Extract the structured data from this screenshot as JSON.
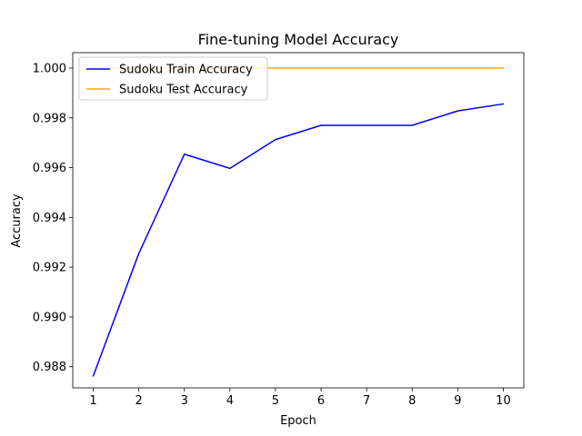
{
  "chart_data": {
    "type": "line",
    "title": "Fine-tuning Model Accuracy",
    "xlabel": "Epoch",
    "ylabel": "Accuracy",
    "x": [
      1,
      2,
      3,
      4,
      5,
      6,
      7,
      8,
      9,
      10
    ],
    "xticks": [
      "1",
      "2",
      "3",
      "4",
      "5",
      "6",
      "7",
      "8",
      "9",
      "10"
    ],
    "yticks": [
      "0.988",
      "0.990",
      "0.992",
      "0.994",
      "0.996",
      "0.998",
      "1.000"
    ],
    "ylim": [
      0.98715,
      1.00062
    ],
    "xlim": [
      0.55,
      10.45
    ],
    "grid": false,
    "legend_position": "upper-left",
    "series": [
      {
        "name": "Sudoku Train Accuracy",
        "color": "#0000ff",
        "values": [
          0.98763,
          0.99255,
          0.99654,
          0.99597,
          0.99713,
          0.9977,
          0.9977,
          0.9977,
          0.99828,
          0.99856
        ]
      },
      {
        "name": "Sudoku Test Accuracy",
        "color": "#ffa500",
        "values": [
          1.0,
          1.0,
          1.0,
          1.0,
          1.0,
          1.0,
          1.0,
          1.0,
          1.0,
          1.0
        ]
      }
    ]
  }
}
